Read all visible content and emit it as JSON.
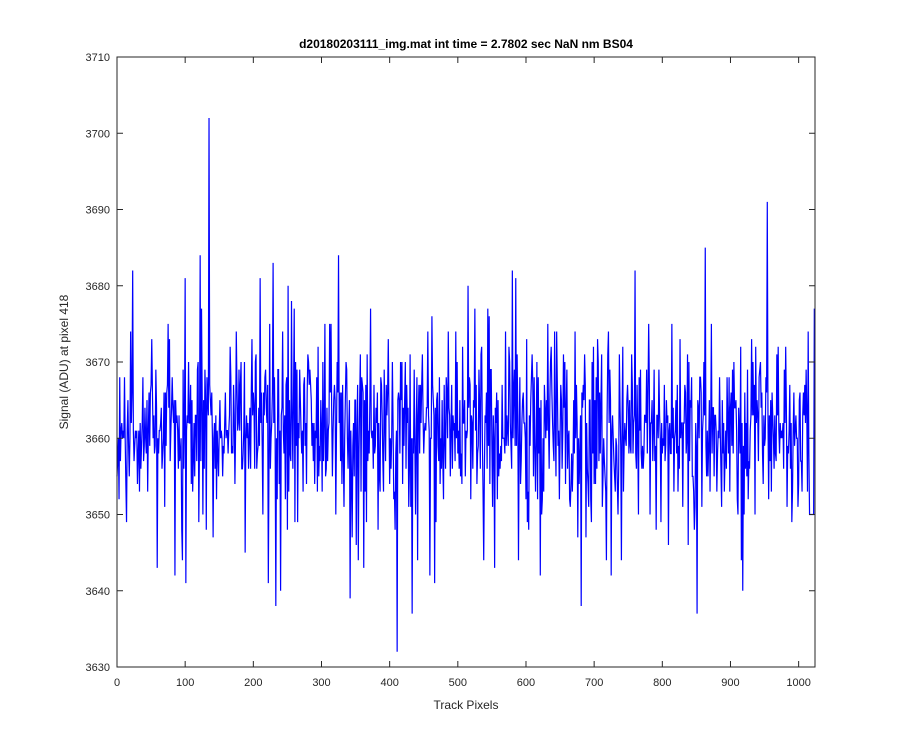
{
  "chart_data": {
    "type": "line",
    "title": "d20180203111_img.mat int time = 2.7802 sec  NaN nm BS04",
    "xlabel": "Track Pixels",
    "ylabel": "Signal (ADU) at pixel 418",
    "xlim": [
      0,
      1024
    ],
    "ylim": [
      3630,
      3710
    ],
    "xticks": [
      0,
      100,
      200,
      300,
      400,
      500,
      600,
      700,
      800,
      900,
      1000
    ],
    "yticks": [
      3630,
      3640,
      3650,
      3660,
      3670,
      3680,
      3690,
      3700,
      3710
    ],
    "xtick_labels": [
      "0",
      "100",
      "200",
      "300",
      "400",
      "500",
      "600",
      "700",
      "800",
      "900",
      "1000"
    ],
    "ytick_labels": [
      "3630",
      "3640",
      "3650",
      "3660",
      "3670",
      "3680",
      "3690",
      "3700",
      "3710"
    ],
    "grid": false,
    "series": [
      {
        "color": "#0000ff",
        "n_points": 1024,
        "approximate": true,
        "peaks": [
          {
            "x": 135,
            "y": 3702
          },
          {
            "x": 954,
            "y": 3691
          },
          {
            "x": 863,
            "y": 3685
          },
          {
            "x": 325,
            "y": 3684
          },
          {
            "x": 122,
            "y": 3684
          },
          {
            "x": 229,
            "y": 3683
          },
          {
            "x": 23,
            "y": 3682
          },
          {
            "x": 210,
            "y": 3681
          },
          {
            "x": 100,
            "y": 3681
          },
          {
            "x": 580,
            "y": 3682
          },
          {
            "x": 760,
            "y": 3682
          },
          {
            "x": 585,
            "y": 3681
          },
          {
            "x": 515,
            "y": 3680
          }
        ],
        "troughs": [
          {
            "x": 411,
            "y": 3632
          },
          {
            "x": 233,
            "y": 3638
          },
          {
            "x": 681,
            "y": 3638
          },
          {
            "x": 851,
            "y": 3637
          },
          {
            "x": 433,
            "y": 3637
          },
          {
            "x": 342,
            "y": 3639
          },
          {
            "x": 918,
            "y": 3640
          },
          {
            "x": 240,
            "y": 3640
          },
          {
            "x": 101,
            "y": 3641
          },
          {
            "x": 222,
            "y": 3641
          },
          {
            "x": 466,
            "y": 3641
          },
          {
            "x": 459,
            "y": 3642
          },
          {
            "x": 85,
            "y": 3642
          },
          {
            "x": 621,
            "y": 3642
          },
          {
            "x": 725,
            "y": 3642
          },
          {
            "x": 59,
            "y": 3643
          },
          {
            "x": 362,
            "y": 3643
          },
          {
            "x": 554,
            "y": 3643
          },
          {
            "x": 589,
            "y": 3644
          }
        ],
        "mean": 3661.5,
        "std": 6.5,
        "end_segment": [
          {
            "x": 1016,
            "y": 3650
          },
          {
            "x": 1022,
            "y": 3650
          },
          {
            "x": 1023,
            "y": 3677
          }
        ]
      }
    ]
  }
}
